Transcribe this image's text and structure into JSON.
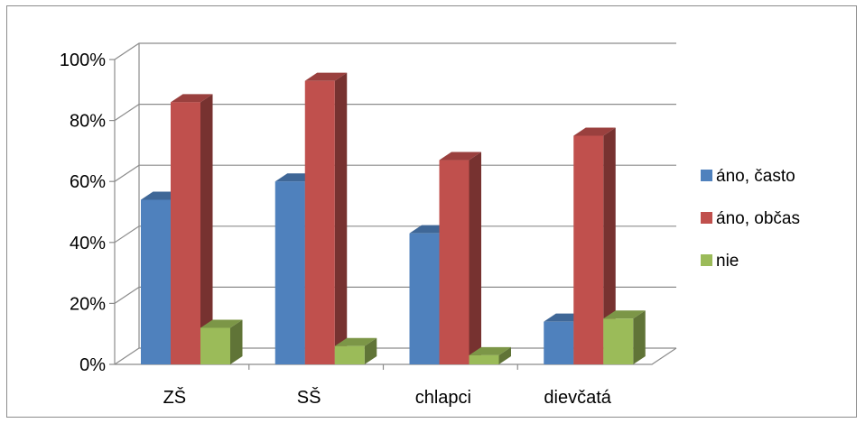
{
  "chart_data": {
    "type": "bar",
    "style": "3d-clustered-column",
    "categories": [
      "ZŠ",
      "SŠ",
      "chlapci",
      "dievčatá"
    ],
    "series": [
      {
        "name": "áno, často",
        "color": "#4F81BD",
        "values": [
          54,
          60,
          43,
          14
        ]
      },
      {
        "name": "áno, občas",
        "color": "#C0504D",
        "values": [
          86,
          93,
          67,
          75
        ]
      },
      {
        "name": "nie",
        "color": "#9BBB59",
        "values": [
          12,
          6,
          3,
          15
        ]
      }
    ],
    "y_ticks": [
      "0%",
      "20%",
      "40%",
      "60%",
      "80%",
      "100%"
    ],
    "ylim": [
      0,
      100
    ],
    "grid": true,
    "legend_position": "right"
  }
}
